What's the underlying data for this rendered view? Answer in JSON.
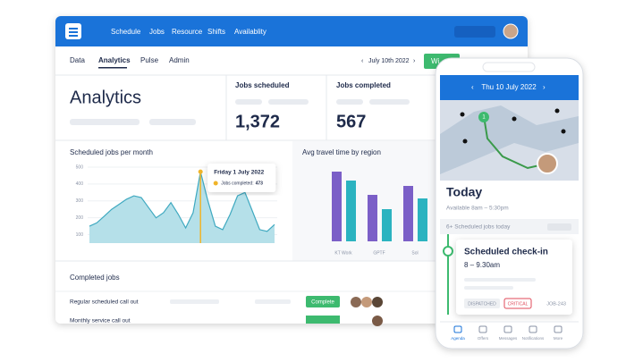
{
  "nav": {
    "items": [
      "Schedule",
      "Jobs",
      "Resource",
      "Shifts",
      "Availablity"
    ]
  },
  "tabs": [
    "Data",
    "Analytics",
    "Pulse",
    "Admin"
  ],
  "date": "July 10th 2022",
  "button": "Wi",
  "heading": "Analytics",
  "cards": [
    {
      "label": "Jobs scheduled",
      "value": "1,372"
    },
    {
      "label": "Jobs completed",
      "value": "567"
    }
  ],
  "jobs_chart": {
    "title": "Scheduled jobs per month",
    "ylim": [
      50,
      500
    ],
    "yticks": [
      500,
      400,
      300,
      200,
      100
    ],
    "values": [
      150,
      170,
      210,
      250,
      280,
      310,
      330,
      320,
      260,
      200,
      230,
      290,
      220,
      140,
      230,
      473,
      300,
      150,
      130,
      220,
      330,
      350,
      240,
      130,
      120,
      160
    ],
    "tooltip": {
      "date": "Friday 1 July 2022",
      "label": "Jobs completed:",
      "value": 473
    }
  },
  "travel_chart": {
    "title": "Avg travel time by region",
    "categories": [
      "KT Work",
      "GPTF",
      "Sol"
    ]
  },
  "completed": {
    "title": "Completed jobs",
    "rows": [
      {
        "name": "Regular scheduled call out",
        "status": "Complete"
      },
      {
        "name": "Monthly service call out",
        "status": "Complete"
      }
    ]
  },
  "phone": {
    "date": "Thu 10 July 2022",
    "today": "Today",
    "available": "Available 8am – 5:30pm",
    "jobs_today": "6+ Scheduled jobs today",
    "job": {
      "title": "Scheduled check-in",
      "time": "8 – 9.30am",
      "tags": [
        "DISPATCHED",
        "CRITICAL"
      ],
      "id": "JOB-243"
    },
    "nav": [
      "Agenda",
      "Offers",
      "Messages",
      "Notifications",
      "More"
    ]
  }
}
